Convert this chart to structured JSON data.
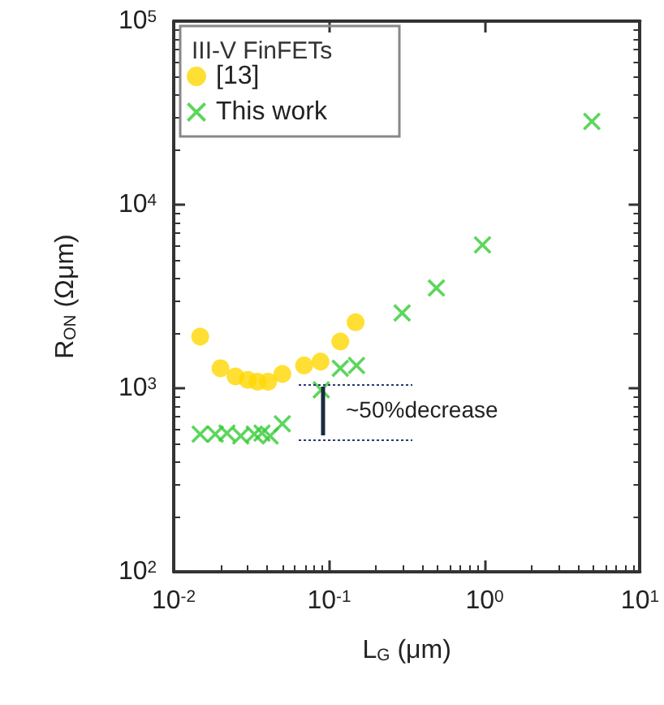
{
  "chart_data": {
    "type": "scatter",
    "xlabel": "L$_{G}$ (μm)",
    "ylabel": "R$_{ON}$ (Ωμm)",
    "legend_title": "III-V FinFETs",
    "log": "xy",
    "xlim": [
      0.01,
      10
    ],
    "ylim": [
      100,
      100000
    ],
    "xticks": [
      {
        "value": 0.01,
        "label": "10$^{-2}$"
      },
      {
        "value": 0.1,
        "label": "10$^{-1}$"
      },
      {
        "value": 1,
        "label": "10$^{0}$"
      },
      {
        "value": 10,
        "label": "10$^{1}$"
      }
    ],
    "yticks": [
      {
        "value": 100,
        "label": "10$^{2}$"
      },
      {
        "value": 1000,
        "label": "10$^{3}$"
      },
      {
        "value": 10000,
        "label": "10$^{4}$"
      },
      {
        "value": 100000,
        "label": "10$^{5}$"
      }
    ],
    "grid": false,
    "legend": "top left",
    "series": [
      {
        "name": "[13]",
        "color": "#ffd700",
        "marker": "circle",
        "x": [
          0.0148,
          0.02,
          0.025,
          0.03,
          0.0346,
          0.0405,
          0.05,
          0.069,
          0.088,
          0.118,
          0.148
        ],
        "values": [
          1910,
          1285,
          1160,
          1110,
          1085,
          1085,
          1195,
          1330,
          1395,
          1795,
          2290
        ]
      },
      {
        "name": "This work",
        "color": "#33cc33",
        "marker": "cross",
        "x": [
          0.0148,
          0.0185,
          0.022,
          0.027,
          0.033,
          0.037,
          0.0417,
          0.05,
          0.089,
          0.118,
          0.15,
          0.295,
          0.49,
          0.97,
          4.9
        ],
        "values": [
          562,
          562,
          570,
          550,
          562,
          570,
          550,
          640,
          980,
          1285,
          1330,
          2570,
          3515,
          6040,
          28400
        ]
      }
    ],
    "annotations": [
      "~50%decrease"
    ]
  }
}
